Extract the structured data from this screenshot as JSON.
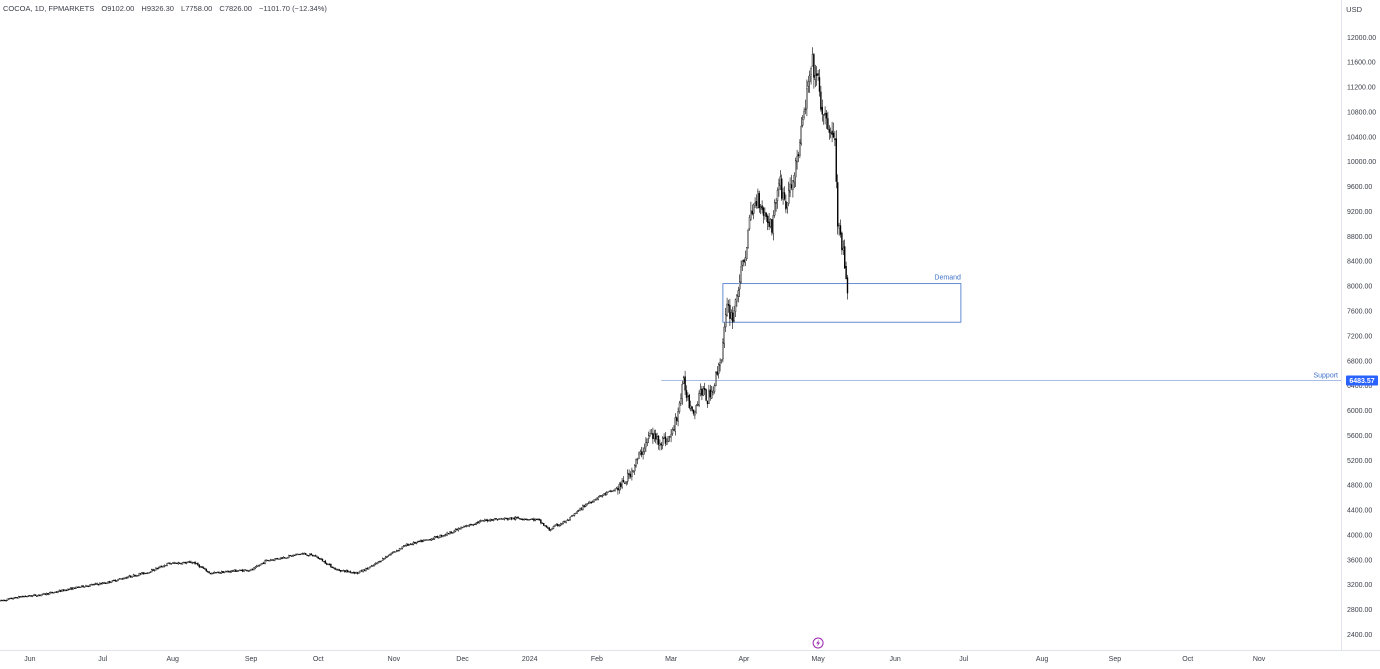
{
  "header": {
    "symbol": "COCOA, 1D, FPMARKETS",
    "open": "O9102.00",
    "high": "H9326.30",
    "low": "L7758.00",
    "close": "C7826.00",
    "change": "−1101.70 (−12.34%)"
  },
  "currency": "USD",
  "zone_labels": {
    "demand": "Demand",
    "support": "Support"
  },
  "price_badge": "6483.57",
  "event_icon": "lightning-bolt-icon",
  "colors": {
    "background": "#ffffff",
    "candle_up": "#ffffff",
    "candle_down": "#000000",
    "candle_outline": "#000000",
    "zone_line": "#3d6fc7",
    "badge_bg": "#2962ff",
    "axis_text": "#3a3e48",
    "event_icon": "#9c27b0"
  },
  "chart_data": {
    "type": "candlestick",
    "instrument": "COCOA",
    "interval": "1D",
    "currency": "USD",
    "y_ticks": [
      2400,
      2800,
      3200,
      3600,
      4000,
      4400,
      4800,
      5200,
      5600,
      6000,
      6400,
      6800,
      7200,
      7600,
      8000,
      8400,
      8800,
      9200,
      9600,
      10000,
      10400,
      10800,
      11200,
      11600,
      12000
    ],
    "ylim": [
      2150,
      12600
    ],
    "x_labels": [
      "Jun",
      "Jul",
      "Aug",
      "Sep",
      "Oct",
      "Nov",
      "Dec",
      "2024",
      "Feb",
      "Mar",
      "Apr",
      "May",
      "Jun",
      "Jul",
      "Aug",
      "Sep",
      "Oct",
      "Nov"
    ],
    "x_label_bar_index": [
      21,
      73,
      123,
      179,
      227,
      281,
      330,
      378,
      426,
      479,
      531,
      584,
      639,
      688,
      744,
      796,
      848,
      899
    ],
    "x_extent_bars": [
      0,
      960
    ],
    "demand_zone": {
      "start_bar": 516,
      "end_bar": 686,
      "top": 8040,
      "bottom": 7420,
      "label": "Demand"
    },
    "support_level": {
      "start_bar": 472,
      "value": 6483.57,
      "label": "Support"
    },
    "key_path": [
      [
        0,
        2940
      ],
      [
        15,
        3010
      ],
      [
        30,
        3040
      ],
      [
        45,
        3110
      ],
      [
        60,
        3180
      ],
      [
        75,
        3230
      ],
      [
        90,
        3320
      ],
      [
        105,
        3400
      ],
      [
        120,
        3540
      ],
      [
        138,
        3560
      ],
      [
        150,
        3380
      ],
      [
        165,
        3420
      ],
      [
        180,
        3440
      ],
      [
        190,
        3590
      ],
      [
        205,
        3650
      ],
      [
        215,
        3700
      ],
      [
        225,
        3660
      ],
      [
        240,
        3440
      ],
      [
        255,
        3390
      ],
      [
        265,
        3490
      ],
      [
        278,
        3690
      ],
      [
        290,
        3840
      ],
      [
        305,
        3920
      ],
      [
        318,
        4010
      ],
      [
        330,
        4120
      ],
      [
        340,
        4200
      ],
      [
        350,
        4250
      ],
      [
        360,
        4260
      ],
      [
        372,
        4270
      ],
      [
        384,
        4240
      ],
      [
        392,
        4080
      ],
      [
        396,
        4140
      ],
      [
        405,
        4230
      ],
      [
        418,
        4490
      ],
      [
        428,
        4620
      ],
      [
        438,
        4720
      ],
      [
        445,
        4820
      ],
      [
        452,
        5080
      ],
      [
        458,
        5340
      ],
      [
        464,
        5620
      ],
      [
        470,
        5520
      ],
      [
        476,
        5520
      ],
      [
        480,
        5640
      ],
      [
        484,
        6000
      ],
      [
        488,
        6450
      ],
      [
        492,
        6120
      ],
      [
        496,
        6000
      ],
      [
        500,
        6350
      ],
      [
        505,
        6180
      ],
      [
        510,
        6450
      ],
      [
        515,
        6900
      ],
      [
        519,
        7650
      ],
      [
        523,
        7500
      ],
      [
        527,
        8000
      ],
      [
        531,
        8400
      ],
      [
        536,
        9150
      ],
      [
        541,
        9450
      ],
      [
        546,
        9150
      ],
      [
        551,
        8970
      ],
      [
        556,
        9700
      ],
      [
        561,
        9300
      ],
      [
        566,
        9700
      ],
      [
        571,
        10300
      ],
      [
        576,
        11100
      ],
      [
        580,
        11560
      ],
      [
        584,
        11250
      ],
      [
        588,
        10650
      ],
      [
        592,
        10560
      ],
      [
        596,
        10300
      ],
      [
        598,
        9000
      ],
      [
        602,
        8500
      ],
      [
        605,
        7830
      ]
    ]
  }
}
